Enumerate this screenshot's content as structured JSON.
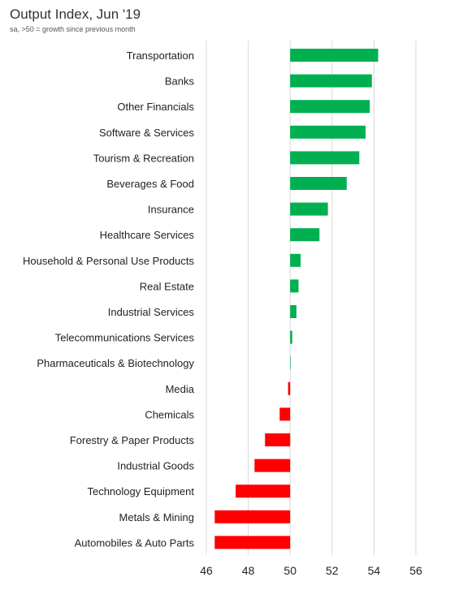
{
  "chart_data": {
    "type": "bar",
    "orientation": "horizontal",
    "title": "Output Index, Jun '19",
    "subtitle": "sa, >50 = growth since previous month",
    "baseline": 50,
    "xlim": [
      46,
      56
    ],
    "xticks": [
      46,
      48,
      50,
      52,
      54,
      56
    ],
    "grid": true,
    "categories": [
      "Transportation",
      "Banks",
      "Other Financials",
      "Software & Services",
      "Tourism & Recreation",
      "Beverages & Food",
      "Insurance",
      "Healthcare Services",
      "Household & Personal Use Products",
      "Real Estate",
      "Industrial Services",
      "Telecommunications Services",
      "Pharmaceuticals & Biotechnology",
      "Media",
      "Chemicals",
      "Forestry & Paper Products",
      "Industrial Goods",
      "Technology Equipment",
      "Metals & Mining",
      "Automobiles & Auto Parts"
    ],
    "values": [
      54.2,
      53.9,
      53.8,
      53.6,
      53.3,
      52.7,
      51.8,
      51.4,
      50.5,
      50.4,
      50.3,
      50.1,
      50.0,
      49.9,
      49.5,
      48.8,
      48.3,
      47.4,
      46.4,
      46.4
    ],
    "colors": {
      "positive": "#00b050",
      "negative": "#ff0000",
      "grid": "#d9d9d9"
    }
  }
}
